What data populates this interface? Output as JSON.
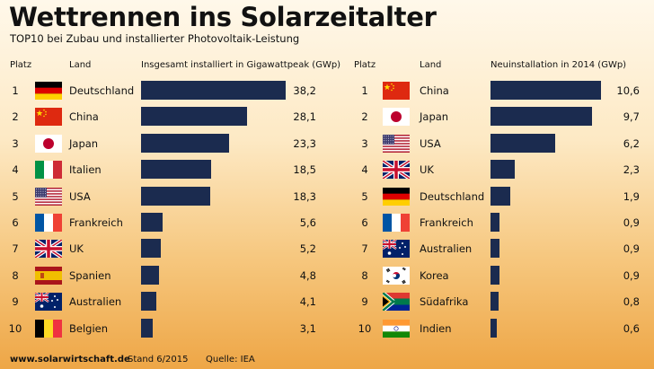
{
  "title": "Wettrennen ins Solarzeitalter",
  "subtitle": "TOP10 bei Zubau und installierter Photovoltaik-Leistung",
  "footer": {
    "website": "www.solarwirtschaft.de",
    "stand": "Stand 6/2015",
    "quelle": "Quelle: IEA"
  },
  "colors": {
    "bar": "#1b2b4f"
  },
  "chart_data": [
    {
      "type": "bar",
      "orientation": "horizontal",
      "col_rank": "Platz",
      "col_land": "Land",
      "col_value": "Insgesamt installiert in Gigawattpeak (GWp)",
      "xlim": [
        0,
        40
      ],
      "categories": [
        "Deutschland",
        "China",
        "Japan",
        "Italien",
        "USA",
        "Frankreich",
        "UK",
        "Spanien",
        "Australien",
        "Belgien"
      ],
      "ranks": [
        "1",
        "2",
        "3",
        "4",
        "5",
        "6",
        "7",
        "8",
        "9",
        "10"
      ],
      "flags": [
        "de",
        "cn",
        "jp",
        "it",
        "us",
        "fr",
        "uk",
        "es",
        "au",
        "be"
      ],
      "values": [
        38.2,
        28.1,
        23.3,
        18.5,
        18.3,
        5.6,
        5.2,
        4.8,
        4.1,
        3.1
      ],
      "labels": [
        "38,2",
        "28,1",
        "23,3",
        "18,5",
        "18,3",
        "5,6",
        "5,2",
        "4,8",
        "4,1",
        "3,1"
      ]
    },
    {
      "type": "bar",
      "orientation": "horizontal",
      "col_rank": "Platz",
      "col_land": "Land",
      "col_value": "Neuinstallation in 2014 (GWp)",
      "xlim": [
        0,
        11
      ],
      "categories": [
        "China",
        "Japan",
        "USA",
        "UK",
        "Deutschland",
        "Frankreich",
        "Australien",
        "Korea",
        "Südafrika",
        "Indien"
      ],
      "ranks": [
        "1",
        "2",
        "3",
        "4",
        "5",
        "6",
        "7",
        "8",
        "9",
        "10"
      ],
      "flags": [
        "cn",
        "jp",
        "us",
        "uk",
        "de",
        "fr",
        "au",
        "kr",
        "za",
        "in"
      ],
      "values": [
        10.6,
        9.7,
        6.2,
        2.3,
        1.9,
        0.9,
        0.9,
        0.9,
        0.8,
        0.6
      ],
      "labels": [
        "10,6",
        "9,7",
        "6,2",
        "2,3",
        "1,9",
        "0,9",
        "0,9",
        "0,9",
        "0,8",
        "0,6"
      ]
    }
  ]
}
